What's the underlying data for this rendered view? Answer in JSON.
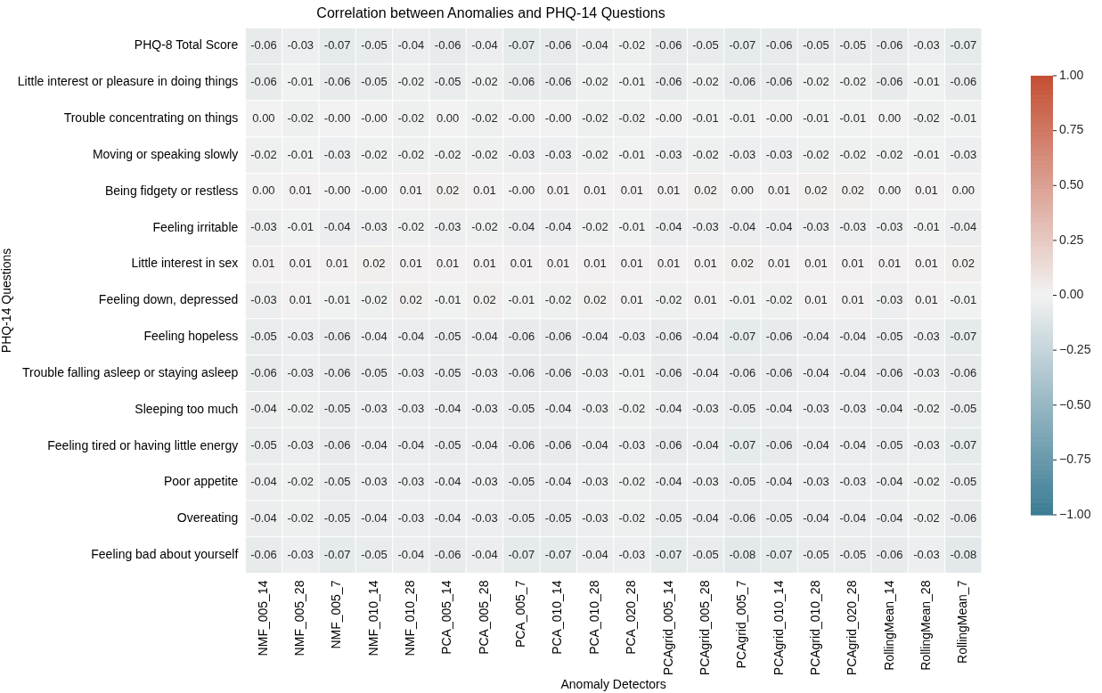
{
  "chart_data": {
    "type": "heatmap",
    "title": "Correlation between Anomalies and PHQ-14 Questions",
    "xlabel": "Anomaly Detectors",
    "ylabel": "PHQ-14 Questions",
    "categories": [
      "NMF_005_14",
      "NMF_005_28",
      "NMF_005_7",
      "NMF_010_14",
      "NMF_010_28",
      "PCA_005_14",
      "PCA_005_28",
      "PCA_005_7",
      "PCA_010_14",
      "PCA_010_28",
      "PCA_020_28",
      "PCAgrid_005_14",
      "PCAgrid_005_28",
      "PCAgrid_005_7",
      "PCAgrid_010_14",
      "PCAgrid_010_28",
      "PCAgrid_020_28",
      "RollingMean_14",
      "RollingMean_28",
      "RollingMean_7"
    ],
    "y_categories": [
      "PHQ-8 Total Score",
      "Little interest or pleasure in doing things",
      "Trouble concentrating on things",
      "Moving or speaking slowly",
      "Being fidgety or restless",
      "Feeling irritable",
      "Little interest in sex",
      "Feeling down, depressed",
      "Feeling hopeless",
      "Trouble falling asleep or staying asleep",
      "Sleeping too much",
      "Feeling tired or having little energy",
      "Poor appetite",
      "Overeating",
      "Feeling bad about yourself"
    ],
    "cells": [
      [
        -0.06,
        -0.03,
        -0.07,
        -0.05,
        -0.04,
        -0.06,
        -0.04,
        -0.07,
        -0.06,
        -0.04,
        -0.02,
        -0.06,
        -0.05,
        -0.07,
        -0.06,
        -0.05,
        -0.05,
        -0.06,
        -0.03,
        -0.07
      ],
      [
        -0.06,
        -0.01,
        -0.06,
        -0.05,
        -0.02,
        -0.05,
        -0.02,
        -0.06,
        -0.06,
        -0.02,
        -0.01,
        -0.06,
        -0.02,
        -0.06,
        -0.06,
        -0.02,
        -0.02,
        -0.06,
        -0.01,
        -0.06
      ],
      [
        0,
        -0.02,
        0,
        0,
        -0.02,
        0,
        -0.02,
        0,
        0,
        -0.02,
        -0.02,
        0,
        -0.01,
        -0.01,
        0,
        -0.01,
        -0.01,
        0,
        -0.02,
        -0.01
      ],
      [
        -0.02,
        -0.01,
        -0.03,
        -0.02,
        -0.02,
        -0.02,
        -0.02,
        -0.03,
        -0.03,
        -0.02,
        -0.01,
        -0.03,
        -0.02,
        -0.03,
        -0.03,
        -0.02,
        -0.02,
        -0.02,
        -0.01,
        -0.03
      ],
      [
        0,
        0.01,
        0,
        0,
        0.01,
        0.02,
        0.01,
        0,
        0.01,
        0.01,
        0.01,
        0.01,
        0.02,
        0,
        0.01,
        0.02,
        0.02,
        0,
        0.01,
        0
      ],
      [
        -0.03,
        -0.01,
        -0.04,
        -0.03,
        -0.02,
        -0.03,
        -0.02,
        -0.04,
        -0.04,
        -0.02,
        -0.01,
        -0.04,
        -0.03,
        -0.04,
        -0.04,
        -0.03,
        -0.03,
        -0.03,
        -0.01,
        -0.04
      ],
      [
        0.01,
        0.01,
        0.01,
        0.02,
        0.01,
        0.01,
        0.01,
        0.01,
        0.01,
        0.01,
        0.01,
        0.01,
        0.01,
        0.02,
        0.01,
        0.01,
        0.01,
        0.01,
        0.01,
        0.02
      ],
      [
        -0.03,
        0.01,
        -0.01,
        -0.02,
        0.02,
        -0.01,
        0.02,
        -0.01,
        -0.02,
        0.02,
        0.01,
        -0.02,
        0.01,
        -0.01,
        -0.02,
        0.01,
        0.01,
        -0.03,
        0.01,
        -0.01
      ],
      [
        -0.05,
        -0.03,
        -0.06,
        -0.04,
        -0.04,
        -0.05,
        -0.04,
        -0.06,
        -0.06,
        -0.04,
        -0.03,
        -0.06,
        -0.04,
        -0.07,
        -0.06,
        -0.04,
        -0.04,
        -0.05,
        -0.03,
        -0.07
      ],
      [
        -0.06,
        -0.03,
        -0.06,
        -0.05,
        -0.03,
        -0.05,
        -0.03,
        -0.06,
        -0.06,
        -0.03,
        -0.01,
        -0.06,
        -0.04,
        -0.06,
        -0.06,
        -0.04,
        -0.04,
        -0.06,
        -0.03,
        -0.06
      ],
      [
        -0.04,
        -0.02,
        -0.05,
        -0.03,
        -0.03,
        -0.04,
        -0.03,
        -0.05,
        -0.04,
        -0.03,
        -0.02,
        -0.04,
        -0.03,
        -0.05,
        -0.04,
        -0.03,
        -0.03,
        -0.04,
        -0.02,
        -0.05
      ],
      [
        -0.05,
        -0.03,
        -0.06,
        -0.04,
        -0.04,
        -0.05,
        -0.04,
        -0.06,
        -0.06,
        -0.04,
        -0.03,
        -0.06,
        -0.04,
        -0.07,
        -0.06,
        -0.04,
        -0.04,
        -0.05,
        -0.03,
        -0.07
      ],
      [
        -0.04,
        -0.02,
        -0.05,
        -0.03,
        -0.03,
        -0.04,
        -0.03,
        -0.05,
        -0.04,
        -0.03,
        -0.02,
        -0.04,
        -0.03,
        -0.05,
        -0.04,
        -0.03,
        -0.03,
        -0.04,
        -0.02,
        -0.05
      ],
      [
        -0.04,
        -0.02,
        -0.05,
        -0.04,
        -0.03,
        -0.04,
        -0.03,
        -0.05,
        -0.05,
        -0.03,
        -0.02,
        -0.05,
        -0.04,
        -0.06,
        -0.05,
        -0.04,
        -0.04,
        -0.04,
        -0.02,
        -0.06
      ],
      [
        -0.06,
        -0.03,
        -0.07,
        -0.05,
        -0.04,
        -0.06,
        -0.04,
        -0.07,
        -0.07,
        -0.04,
        -0.03,
        -0.07,
        -0.05,
        -0.08,
        -0.07,
        -0.05,
        -0.05,
        -0.06,
        -0.03,
        -0.08
      ]
    ],
    "cell_labels": [
      [
        "-0.06",
        "-0.03",
        "-0.07",
        "-0.05",
        "-0.04",
        "-0.06",
        "-0.04",
        "-0.07",
        "-0.06",
        "-0.04",
        "-0.02",
        "-0.06",
        "-0.05",
        "-0.07",
        "-0.06",
        "-0.05",
        "-0.05",
        "-0.06",
        "-0.03",
        "-0.07"
      ],
      [
        "-0.06",
        "-0.01",
        "-0.06",
        "-0.05",
        "-0.02",
        "-0.05",
        "-0.02",
        "-0.06",
        "-0.06",
        "-0.02",
        "-0.01",
        "-0.06",
        "-0.02",
        "-0.06",
        "-0.06",
        "-0.02",
        "-0.02",
        "-0.06",
        "-0.01",
        "-0.06"
      ],
      [
        "0.00",
        "-0.02",
        "-0.00",
        "-0.00",
        "-0.02",
        "0.00",
        "-0.02",
        "-0.00",
        "-0.00",
        "-0.02",
        "-0.02",
        "-0.00",
        "-0.01",
        "-0.01",
        "-0.00",
        "-0.01",
        "-0.01",
        "0.00",
        "-0.02",
        "-0.01"
      ],
      [
        "-0.02",
        "-0.01",
        "-0.03",
        "-0.02",
        "-0.02",
        "-0.02",
        "-0.02",
        "-0.03",
        "-0.03",
        "-0.02",
        "-0.01",
        "-0.03",
        "-0.02",
        "-0.03",
        "-0.03",
        "-0.02",
        "-0.02",
        "-0.02",
        "-0.01",
        "-0.03"
      ],
      [
        "0.00",
        "0.01",
        "-0.00",
        "-0.00",
        "0.01",
        "0.02",
        "0.01",
        "-0.00",
        "0.01",
        "0.01",
        "0.01",
        "0.01",
        "0.02",
        "0.00",
        "0.01",
        "0.02",
        "0.02",
        "0.00",
        "0.01",
        "0.00"
      ],
      [
        "-0.03",
        "-0.01",
        "-0.04",
        "-0.03",
        "-0.02",
        "-0.03",
        "-0.02",
        "-0.04",
        "-0.04",
        "-0.02",
        "-0.01",
        "-0.04",
        "-0.03",
        "-0.04",
        "-0.04",
        "-0.03",
        "-0.03",
        "-0.03",
        "-0.01",
        "-0.04"
      ],
      [
        "0.01",
        "0.01",
        "0.01",
        "0.02",
        "0.01",
        "0.01",
        "0.01",
        "0.01",
        "0.01",
        "0.01",
        "0.01",
        "0.01",
        "0.01",
        "0.02",
        "0.01",
        "0.01",
        "0.01",
        "0.01",
        "0.01",
        "0.02"
      ],
      [
        "-0.03",
        "0.01",
        "-0.01",
        "-0.02",
        "0.02",
        "-0.01",
        "0.02",
        "-0.01",
        "-0.02",
        "0.02",
        "0.01",
        "-0.02",
        "0.01",
        "-0.01",
        "-0.02",
        "0.01",
        "0.01",
        "-0.03",
        "0.01",
        "-0.01"
      ],
      [
        "-0.05",
        "-0.03",
        "-0.06",
        "-0.04",
        "-0.04",
        "-0.05",
        "-0.04",
        "-0.06",
        "-0.06",
        "-0.04",
        "-0.03",
        "-0.06",
        "-0.04",
        "-0.07",
        "-0.06",
        "-0.04",
        "-0.04",
        "-0.05",
        "-0.03",
        "-0.07"
      ],
      [
        "-0.06",
        "-0.03",
        "-0.06",
        "-0.05",
        "-0.03",
        "-0.05",
        "-0.03",
        "-0.06",
        "-0.06",
        "-0.03",
        "-0.01",
        "-0.06",
        "-0.04",
        "-0.06",
        "-0.06",
        "-0.04",
        "-0.04",
        "-0.06",
        "-0.03",
        "-0.06"
      ],
      [
        "-0.04",
        "-0.02",
        "-0.05",
        "-0.03",
        "-0.03",
        "-0.04",
        "-0.03",
        "-0.05",
        "-0.04",
        "-0.03",
        "-0.02",
        "-0.04",
        "-0.03",
        "-0.05",
        "-0.04",
        "-0.03",
        "-0.03",
        "-0.04",
        "-0.02",
        "-0.05"
      ],
      [
        "-0.05",
        "-0.03",
        "-0.06",
        "-0.04",
        "-0.04",
        "-0.05",
        "-0.04",
        "-0.06",
        "-0.06",
        "-0.04",
        "-0.03",
        "-0.06",
        "-0.04",
        "-0.07",
        "-0.06",
        "-0.04",
        "-0.04",
        "-0.05",
        "-0.03",
        "-0.07"
      ],
      [
        "-0.04",
        "-0.02",
        "-0.05",
        "-0.03",
        "-0.03",
        "-0.04",
        "-0.03",
        "-0.05",
        "-0.04",
        "-0.03",
        "-0.02",
        "-0.04",
        "-0.03",
        "-0.05",
        "-0.04",
        "-0.03",
        "-0.03",
        "-0.04",
        "-0.02",
        "-0.05"
      ],
      [
        "-0.04",
        "-0.02",
        "-0.05",
        "-0.04",
        "-0.03",
        "-0.04",
        "-0.03",
        "-0.05",
        "-0.05",
        "-0.03",
        "-0.02",
        "-0.05",
        "-0.04",
        "-0.06",
        "-0.05",
        "-0.04",
        "-0.04",
        "-0.04",
        "-0.02",
        "-0.06"
      ],
      [
        "-0.06",
        "-0.03",
        "-0.07",
        "-0.05",
        "-0.04",
        "-0.06",
        "-0.04",
        "-0.07",
        "-0.07",
        "-0.04",
        "-0.03",
        "-0.07",
        "-0.05",
        "-0.08",
        "-0.07",
        "-0.05",
        "-0.05",
        "-0.06",
        "-0.03",
        "-0.08"
      ]
    ],
    "data_labels": true,
    "clim": [
      -1,
      1
    ],
    "cticks": [
      {
        "value": 1,
        "label": "1.00"
      },
      {
        "value": 0.75,
        "label": "0.75"
      },
      {
        "value": 0.5,
        "label": "0.50"
      },
      {
        "value": 0.25,
        "label": "0.25"
      },
      {
        "value": 0,
        "label": "0.00"
      },
      {
        "value": -0.25,
        "label": "−0.25"
      },
      {
        "value": -0.5,
        "label": "−0.50"
      },
      {
        "value": -0.75,
        "label": "−0.75"
      },
      {
        "value": -1,
        "label": "−1.00"
      }
    ]
  }
}
